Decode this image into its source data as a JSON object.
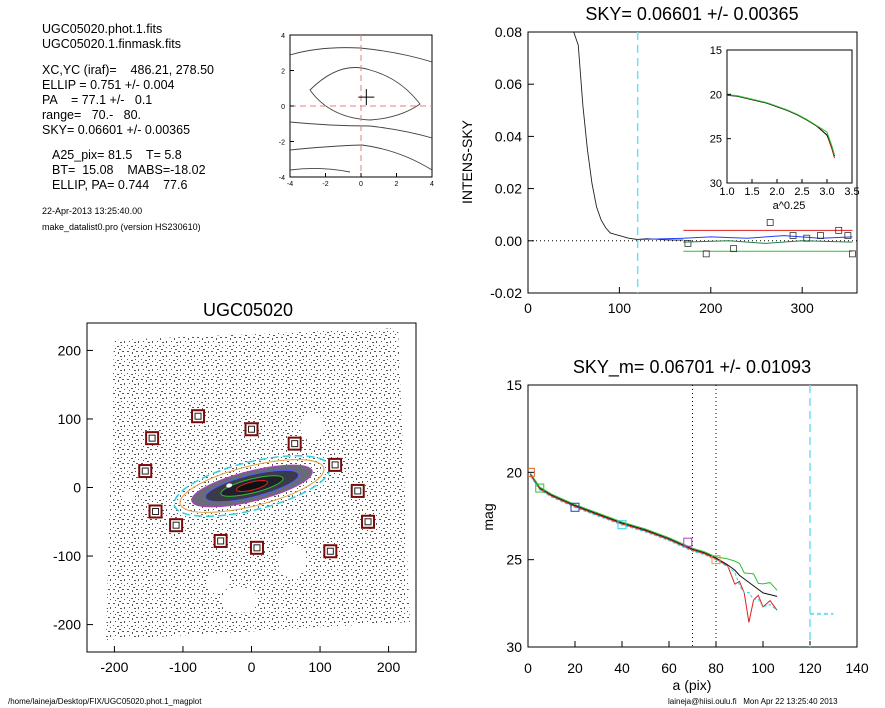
{
  "header": {
    "file1": "UGC05020.phot.1.fits",
    "file2": "UGC05020.1.finmask.fits",
    "xcyc": "XC,YC (iraf)=    486.21, 278.50",
    "ellip": "ELLIP = 0.751 +/- 0.004",
    "pa": "PA    = 77.1 +/-   0.1",
    "range": "range=   70.-   80.",
    "sky": "SKY= 0.06601 +/- 0.00365",
    "a25": "A25_pix= 81.5    T= 5.8",
    "bt": "BT=  15.08    MABS=-18.02",
    "ellip_pa": "ELLIP, PA= 0.744    77.6",
    "date": "22-Apr-2013 13:25:40.00",
    "program": "make_datalist0.pro (version HS230610)"
  },
  "footer": {
    "path": "/home/laineja/Desktop/FIX/UGC05020.phot.1_magplot",
    "user": "laineja@hiisi.oulu.fi   Mon Apr 22 13:25:40 2013"
  },
  "colors": {
    "sky_marker": "#6fe0f0",
    "guide": "#e08080",
    "red": "#e02020",
    "green": "#30c030",
    "blue": "#2040ff",
    "cyan": "#30d0e0"
  },
  "chart_data": [
    {
      "id": "centering",
      "type": "contour",
      "xlim": [
        -4,
        4
      ],
      "ylim": [
        -4,
        4
      ],
      "xticks": [
        "-4",
        "-2",
        "0",
        "2",
        "4"
      ],
      "yticks": [
        "4",
        "2",
        "0",
        "-2",
        "-4"
      ],
      "center": [
        0.3,
        0.5
      ]
    },
    {
      "id": "sky_profile",
      "type": "line",
      "title": "SKY= 0.06601 +/- 0.00365",
      "xlabel": "",
      "ylabel": "INTENS-SKY",
      "xlim": [
        0,
        360
      ],
      "ylim": [
        -0.02,
        0.08
      ],
      "xticks": [
        "0",
        "100",
        "200",
        "300"
      ],
      "yticks": [
        "0.08",
        "0.06",
        "0.04",
        "0.02",
        "0.00",
        "-0.02"
      ],
      "sky_radius": 120,
      "profile_x": [
        5,
        10,
        20,
        30,
        40,
        50,
        55,
        60,
        65,
        70,
        75,
        80,
        85,
        90,
        95,
        100,
        110,
        120,
        130,
        140,
        150,
        160,
        170
      ],
      "profile_y": [
        0.085,
        0.084,
        0.083,
        0.082,
        0.081,
        0.08,
        0.075,
        0.052,
        0.035,
        0.022,
        0.013,
        0.008,
        0.005,
        0.003,
        0.0025,
        0.002,
        0.001,
        0.0005,
        0.0008,
        0.0006,
        0.0004,
        0.0003,
        0.0003
      ],
      "sky_boxes_x": [
        175,
        195,
        225,
        265,
        290,
        305,
        320,
        340,
        350,
        355
      ],
      "sky_boxes_y": [
        -0.001,
        -0.005,
        -0.003,
        0.007,
        0.002,
        0.001,
        0.002,
        0.004,
        0.002,
        -0.005
      ],
      "upper_level": 0.004,
      "lower_level": -0.004
    },
    {
      "id": "sky_inset",
      "type": "line",
      "xlabel": "a^0.25",
      "xlim": [
        1.0,
        3.5
      ],
      "ylim": [
        15,
        30
      ],
      "xticks": [
        "1.0",
        "1.5",
        "2.0",
        "2.5",
        "3.0",
        "3.5"
      ],
      "yticks": [
        "15",
        "20",
        "25",
        "30"
      ],
      "x": [
        1.0,
        1.2,
        1.5,
        1.8,
        2.0,
        2.2,
        2.4,
        2.6,
        2.8,
        3.0,
        3.05,
        3.1,
        3.15
      ],
      "y": [
        20.1,
        20.2,
        20.6,
        21.0,
        21.4,
        21.8,
        22.3,
        22.9,
        23.6,
        24.6,
        25.4,
        26.2,
        27.2
      ]
    },
    {
      "id": "galaxy_image",
      "type": "image",
      "title": "UGC05020",
      "xlim": [
        -240,
        240
      ],
      "ylim": [
        -240,
        240
      ],
      "xticks": [
        "-200",
        "-100",
        "0",
        "100",
        "200"
      ],
      "yticks": [
        "200",
        "100",
        "0",
        "-100",
        "-200"
      ],
      "star_masks": [
        [
          -145,
          72
        ],
        [
          -78,
          104
        ],
        [
          0,
          85
        ],
        [
          63,
          64
        ],
        [
          122,
          33
        ],
        [
          -155,
          24
        ],
        [
          155,
          -5
        ],
        [
          -140,
          -35
        ],
        [
          -110,
          -55
        ],
        [
          -45,
          -78
        ],
        [
          8,
          -88
        ],
        [
          115,
          -93
        ],
        [
          170,
          -50
        ]
      ]
    },
    {
      "id": "mag_profile",
      "type": "line",
      "title": "SKY_m=  0.06701 +/- 0.01093",
      "xlabel": "a (pix)",
      "ylabel": "mag",
      "xlim": [
        0,
        140
      ],
      "ylim": [
        15,
        30
      ],
      "xticks": [
        "0",
        "20",
        "40",
        "60",
        "80",
        "100",
        "120",
        "140"
      ],
      "yticks": [
        "15",
        "20",
        "25",
        "30"
      ],
      "range_markers": [
        70,
        80
      ],
      "sky_radius": 120,
      "sky_mag": 28.1,
      "x": [
        1,
        5,
        10,
        20,
        30,
        40,
        50,
        60,
        65,
        70,
        75,
        80,
        85,
        88,
        90,
        92,
        94,
        96,
        98,
        100,
        103,
        106
      ],
      "y": [
        20.1,
        20.9,
        21.3,
        21.9,
        22.4,
        22.9,
        23.3,
        23.8,
        24.1,
        24.4,
        24.6,
        24.9,
        25.3,
        25.6,
        25.9,
        26.1,
        26.3,
        26.5,
        26.7,
        26.9,
        27.0,
        27.1
      ],
      "boxes_x": [
        1,
        5,
        20,
        40,
        68,
        80
      ],
      "boxes_y": [
        20.0,
        20.9,
        22.0,
        23.0,
        24.0,
        25.0
      ]
    }
  ]
}
